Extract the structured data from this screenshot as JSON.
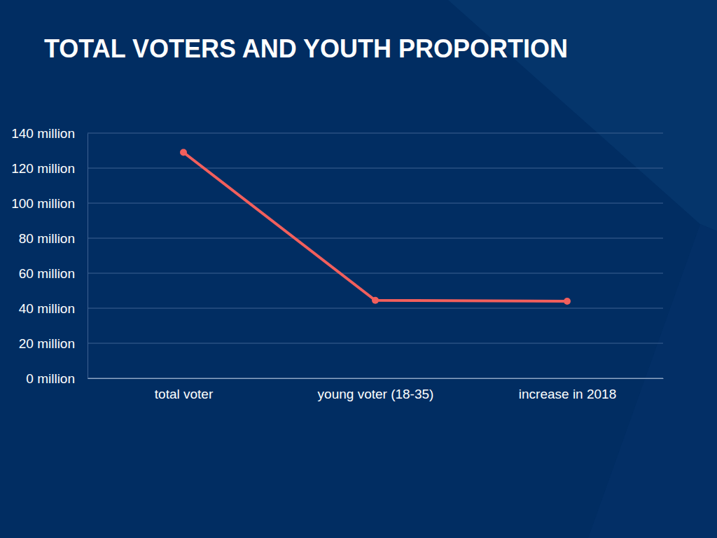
{
  "chart_data": {
    "type": "line",
    "title": "TOTAL VOTERS AND YOUTH PROPORTION",
    "categories": [
      "total voter",
      "young voter (18-35)",
      "increase in 2018"
    ],
    "values": [
      129,
      44.5,
      44
    ],
    "color": "#f25f5c",
    "marker": "circle",
    "ylim": [
      0,
      140
    ],
    "yticks": [
      {
        "value": 0,
        "label": "0 million"
      },
      {
        "value": 20,
        "label": "20 million"
      },
      {
        "value": 40,
        "label": "40 million"
      },
      {
        "value": 60,
        "label": "60 million"
      },
      {
        "value": 80,
        "label": "80 million"
      },
      {
        "value": 100,
        "label": "100 million"
      },
      {
        "value": 120,
        "label": "120 million"
      },
      {
        "value": 140,
        "label": "140 million"
      }
    ],
    "grid": true
  }
}
